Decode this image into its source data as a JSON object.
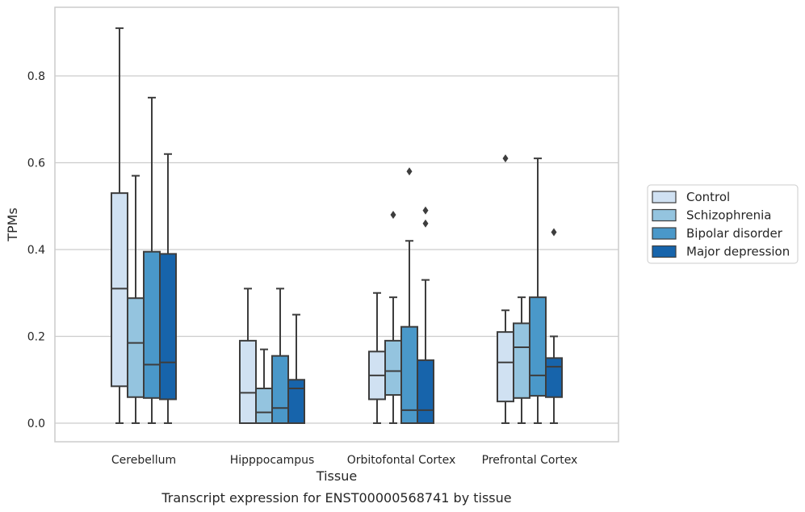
{
  "caption": "Transcript expression for ENST00000568741 by tissue",
  "chart_data": {
    "type": "box",
    "xlabel": "Tissue",
    "ylabel": "TPMs",
    "ylim": [
      -0.045,
      0.96
    ],
    "yticks": [
      "0.0",
      "0.2",
      "0.4",
      "0.6",
      "0.8"
    ],
    "ytick_values": [
      0.0,
      0.2,
      0.4,
      0.6,
      0.8
    ],
    "grid": true,
    "legend_position": "right",
    "categories": [
      "Cerebellum",
      "Hipppocampus",
      "Orbitofontal Cortex",
      "Prefrontal Cortex"
    ],
    "series": [
      {
        "name": "Control",
        "color": "#d0e1f2",
        "boxes": [
          {
            "min": 0.0,
            "q1": 0.085,
            "median": 0.31,
            "q3": 0.53,
            "max": 0.91,
            "outliers": []
          },
          {
            "min": 0.0,
            "q1": 0.0,
            "median": 0.07,
            "q3": 0.19,
            "max": 0.31,
            "outliers": []
          },
          {
            "min": 0.0,
            "q1": 0.055,
            "median": 0.11,
            "q3": 0.165,
            "max": 0.3,
            "outliers": []
          },
          {
            "min": 0.0,
            "q1": 0.05,
            "median": 0.14,
            "q3": 0.21,
            "max": 0.26,
            "outliers": [
              0.61
            ]
          }
        ]
      },
      {
        "name": "Schizophrenia",
        "color": "#94c4df",
        "boxes": [
          {
            "min": 0.0,
            "q1": 0.06,
            "median": 0.185,
            "q3": 0.288,
            "max": 0.57,
            "outliers": []
          },
          {
            "min": 0.0,
            "q1": 0.0,
            "median": 0.025,
            "q3": 0.08,
            "max": 0.17,
            "outliers": []
          },
          {
            "min": 0.0,
            "q1": 0.065,
            "median": 0.12,
            "q3": 0.19,
            "max": 0.29,
            "outliers": [
              0.48
            ]
          },
          {
            "min": 0.0,
            "q1": 0.058,
            "median": 0.175,
            "q3": 0.23,
            "max": 0.29,
            "outliers": []
          }
        ]
      },
      {
        "name": "Bipolar disorder",
        "color": "#4a98c9",
        "boxes": [
          {
            "min": 0.0,
            "q1": 0.058,
            "median": 0.135,
            "q3": 0.395,
            "max": 0.75,
            "outliers": []
          },
          {
            "min": 0.0,
            "q1": 0.0,
            "median": 0.035,
            "q3": 0.155,
            "max": 0.31,
            "outliers": []
          },
          {
            "min": 0.0,
            "q1": 0.0,
            "median": 0.03,
            "q3": 0.222,
            "max": 0.42,
            "outliers": [
              0.58
            ]
          },
          {
            "min": 0.0,
            "q1": 0.063,
            "median": 0.11,
            "q3": 0.29,
            "max": 0.61,
            "outliers": []
          }
        ]
      },
      {
        "name": "Major depression",
        "color": "#1764ab",
        "boxes": [
          {
            "min": 0.0,
            "q1": 0.055,
            "median": 0.14,
            "q3": 0.39,
            "max": 0.62,
            "outliers": []
          },
          {
            "min": 0.0,
            "q1": 0.0,
            "median": 0.08,
            "q3": 0.1,
            "max": 0.25,
            "outliers": []
          },
          {
            "min": 0.0,
            "q1": 0.0,
            "median": 0.03,
            "q3": 0.145,
            "max": 0.33,
            "outliers": [
              0.46,
              0.49
            ]
          },
          {
            "min": 0.0,
            "q1": 0.06,
            "median": 0.13,
            "q3": 0.15,
            "max": 0.2,
            "outliers": [
              0.44
            ]
          }
        ]
      }
    ]
  }
}
